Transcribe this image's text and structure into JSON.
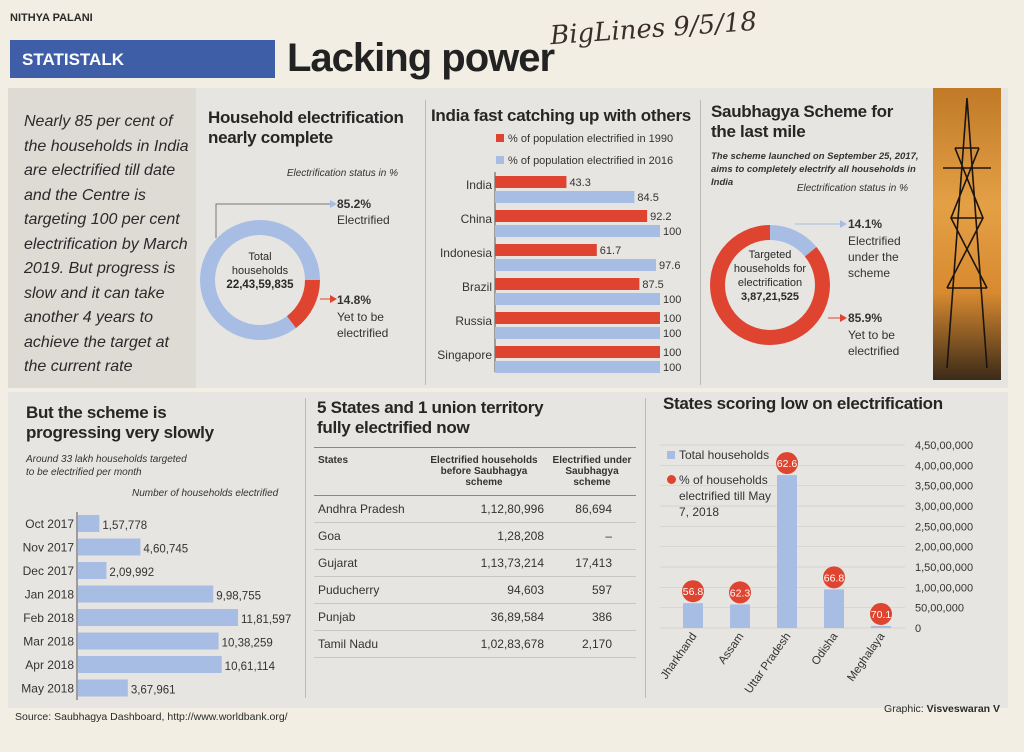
{
  "byline": "NITHYA PALANI",
  "section": "STATISTALK",
  "headline": "Lacking power",
  "handwritten_note": "BigLines 9/5/18",
  "intro": "Nearly 85 per cent of the households in India are electrified till date and the Centre is targeting 100 per cent electrification by March 2019. But progress is slow and it can take another 4 years to achieve the target at the current rate",
  "colors": {
    "blue": "#a8bde4",
    "red": "#df4430",
    "brand": "#3f5ea8"
  },
  "source": "Source: Saubhagya Dashboard, http://www.worldbank.org/",
  "credit_label": "Graphic:",
  "credit_name": "Visveswaran V",
  "chart_data": [
    {
      "type": "pie",
      "title": "Household electrification nearly complete",
      "subtitle": "Electrification status in %",
      "center_label": "Total households",
      "center_value": "22,43,59,835",
      "slices": [
        {
          "pct_label": "85.2%",
          "name": "Electrified",
          "value": 85.2,
          "color": "#a8bde4"
        },
        {
          "pct_label": "14.8%",
          "name": "Yet to be electrified",
          "value": 14.8,
          "color": "#df4430"
        }
      ]
    },
    {
      "type": "bar",
      "orientation": "horizontal",
      "title": "India fast catching up with others",
      "legend_placement": "top",
      "categories": [
        "India",
        "China",
        "Indonesia",
        "Brazil",
        "Russia",
        "Singapore"
      ],
      "series": [
        {
          "name": "% of population electrified in 1990",
          "color": "#df4430",
          "values": [
            43.3,
            92.2,
            61.7,
            87.5,
            100,
            100
          ],
          "labels": [
            "43.3",
            "92.2",
            "61.7",
            "87.5",
            "100",
            "100"
          ]
        },
        {
          "name": "% of population electrified in 2016",
          "color": "#a8bde4",
          "values": [
            84.5,
            100,
            97.6,
            100,
            100,
            100
          ],
          "labels": [
            "84.5",
            "100",
            "97.6",
            "100",
            "100",
            "100"
          ]
        }
      ],
      "xlim": [
        0,
        100
      ]
    },
    {
      "type": "pie",
      "title": "Saubhagya Scheme for the last mile",
      "subtitle": "The scheme launched on September 25, 2017, aims to completely electrify all households in India",
      "note": "Electrification status in %",
      "center_label": "Targeted households for electrification",
      "center_value": "3,87,21,525",
      "slices": [
        {
          "pct_label": "14.1%",
          "name": "Electrified under the scheme",
          "value": 14.1,
          "color": "#a8bde4"
        },
        {
          "pct_label": "85.9%",
          "name": "Yet to be electrified",
          "value": 85.9,
          "color": "#df4430"
        }
      ]
    },
    {
      "type": "bar",
      "orientation": "horizontal",
      "title": "But the scheme is progressing very slowly",
      "subtitle": "Around 33 lakh households targeted to be electrified per month",
      "xlabel": "Number of households electrified",
      "categories": [
        "Oct 2017",
        "Nov 2017",
        "Dec 2017",
        "Jan 2018",
        "Feb 2018",
        "Mar 2018",
        "Apr 2018",
        "May 2018"
      ],
      "values": [
        157778,
        460745,
        209992,
        998755,
        1181597,
        1038259,
        1061114,
        367961
      ],
      "labels": [
        "1,57,778",
        "4,60,745",
        "2,09,992",
        "9,98,755",
        "11,81,597",
        "10,38,259",
        "10,61,114",
        "3,67,961"
      ],
      "color": "#a8bde4"
    },
    {
      "type": "table",
      "title": "5 States and 1 union territory fully electrified now",
      "columns": [
        "States",
        "Electrified households before Saubhagya scheme",
        "Electrified under Saubhagya scheme"
      ],
      "rows": [
        [
          "Andhra Pradesh",
          "1,12,80,996",
          "86,694"
        ],
        [
          "Goa",
          "1,28,208",
          "–"
        ],
        [
          "Gujarat",
          "1,13,73,214",
          "17,413"
        ],
        [
          "Puducherry",
          "94,603",
          "597"
        ],
        [
          "Punjab",
          "36,89,584",
          "386"
        ],
        [
          "Tamil Nadu",
          "1,02,83,678",
          "2,170"
        ]
      ]
    },
    {
      "type": "bar",
      "title": "States scoring low on electrification",
      "legend_placement": "top-left",
      "categories": [
        "Jharkhand",
        "Assam",
        "Uttar Pradesh",
        "Odisha",
        "Meghalaya"
      ],
      "series": [
        {
          "name": "Total households",
          "color": "#a8bde4",
          "values": [
            6100000,
            5800000,
            37600000,
            9500000,
            500000
          ]
        },
        {
          "name": "% of households electrified till May 7, 2018",
          "color": "#df4430",
          "values": [
            56.8,
            62.3,
            62.6,
            66.8,
            70.1
          ],
          "labels": [
            "56.8",
            "62.3",
            "62.6",
            "66.8",
            "70.1"
          ]
        }
      ],
      "ylim": [
        0,
        45000000
      ],
      "yticks": [
        "0",
        "50,00,000",
        "1,00,00,000",
        "1,50,00,000",
        "2,00,00,000",
        "2,50,00,000",
        "3,00,00,000",
        "3,50,00,000",
        "4,00,00,000",
        "4,50,00,000"
      ],
      "yaxis_position": "right"
    }
  ]
}
